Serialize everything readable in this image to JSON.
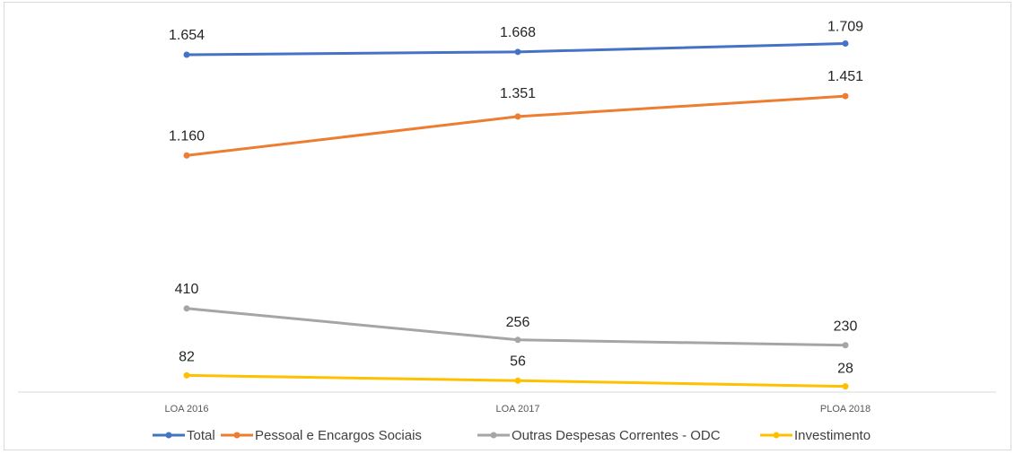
{
  "chart_data": {
    "type": "line",
    "categories": [
      "LOA 2016",
      "LOA 2017",
      "PLOA 2018"
    ],
    "ylim": [
      0,
      1800
    ],
    "grid": false,
    "legend_position": "bottom",
    "series": [
      {
        "name": "Total",
        "color": "#4472c4",
        "values": [
          1654,
          1668,
          1709
        ],
        "labels": [
          "1.654",
          "1.668",
          "1.709"
        ]
      },
      {
        "name": "Pessoal e Encargos Sociais",
        "color": "#ed7d31",
        "values": [
          1160,
          1351,
          1451
        ],
        "labels": [
          "1.160",
          "1.351",
          "1.451"
        ]
      },
      {
        "name": "Outras Despesas Correntes - ODC",
        "color": "#a5a5a5",
        "values": [
          410,
          256,
          230
        ],
        "labels": [
          "410",
          "256",
          "230"
        ]
      },
      {
        "name": "Investimento",
        "color": "#ffc000",
        "values": [
          82,
          56,
          28
        ],
        "labels": [
          "82",
          "56",
          "28"
        ]
      }
    ]
  }
}
